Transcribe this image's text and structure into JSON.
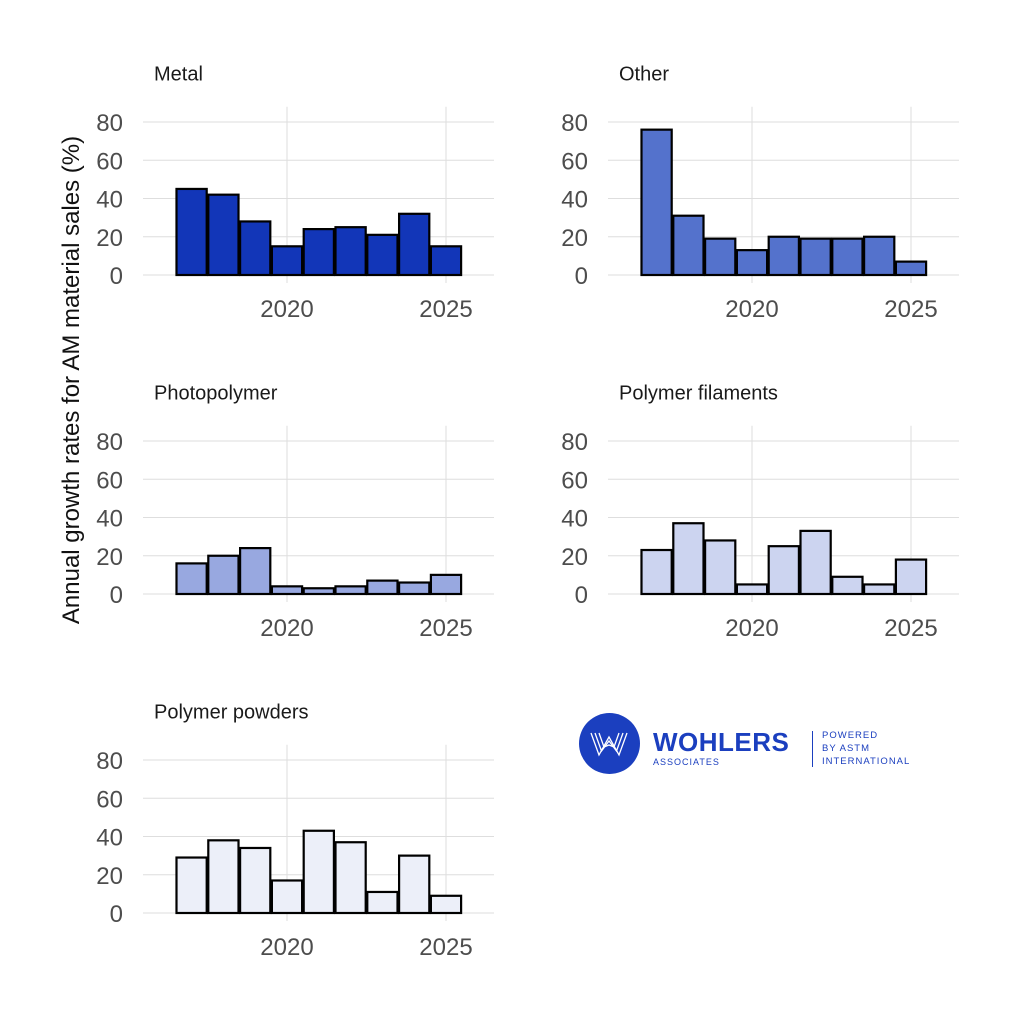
{
  "chart_data": {
    "type": "bar",
    "ylabel": "Annual growth rates for AM material sales (%)",
    "xlabel": "",
    "ylim": [
      0,
      88
    ],
    "yticks": [
      0,
      20,
      40,
      60,
      80
    ],
    "xticks": [
      2020,
      2025
    ],
    "x": [
      2017,
      2018,
      2019,
      2020,
      2021,
      2022,
      2023,
      2024,
      2025
    ],
    "grid": true,
    "panels": [
      {
        "title": "Metal",
        "color": "#1236b8",
        "values": [
          45,
          42,
          28,
          15,
          24,
          25,
          21,
          32,
          15
        ]
      },
      {
        "title": "Other",
        "color": "#5472cc",
        "values": [
          76,
          31,
          19,
          13,
          20,
          19,
          19,
          20,
          7
        ]
      },
      {
        "title": "Photopolymer",
        "color": "#98a8e0",
        "values": [
          16,
          20,
          24,
          4,
          3,
          4,
          7,
          6,
          10
        ]
      },
      {
        "title": "Polymer filaments",
        "color": "#ccd4f0",
        "values": [
          23,
          37,
          28,
          5,
          25,
          33,
          9,
          5,
          18
        ]
      },
      {
        "title": "Polymer powders",
        "color": "#eceff9",
        "values": [
          29,
          38,
          34,
          17,
          43,
          37,
          11,
          30,
          9
        ]
      }
    ]
  },
  "logo": {
    "name": "WOHLERS",
    "sub": "ASSOCIATES",
    "powered_lines": [
      "POWERED",
      "BY ASTM",
      "INTERNATIONAL"
    ]
  }
}
